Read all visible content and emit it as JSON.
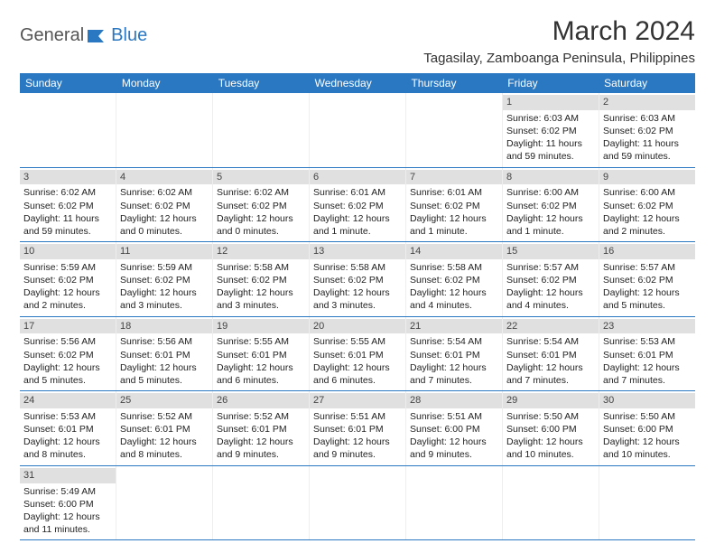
{
  "logo": {
    "part1": "General",
    "part2": "Blue"
  },
  "title": "March 2024",
  "location": "Tagasilay, Zamboanga Peninsula, Philippines",
  "weekdays": [
    "Sunday",
    "Monday",
    "Tuesday",
    "Wednesday",
    "Thursday",
    "Friday",
    "Saturday"
  ],
  "colors": {
    "header_bg": "#2b78c2",
    "header_text": "#ffffff",
    "daynum_bg": "#e0e0e0",
    "border": "#2b78c2",
    "text": "#222222"
  },
  "weeks": [
    [
      {
        "n": "",
        "sr": "",
        "ss": "",
        "dl": ""
      },
      {
        "n": "",
        "sr": "",
        "ss": "",
        "dl": ""
      },
      {
        "n": "",
        "sr": "",
        "ss": "",
        "dl": ""
      },
      {
        "n": "",
        "sr": "",
        "ss": "",
        "dl": ""
      },
      {
        "n": "",
        "sr": "",
        "ss": "",
        "dl": ""
      },
      {
        "n": "1",
        "sr": "Sunrise: 6:03 AM",
        "ss": "Sunset: 6:02 PM",
        "dl": "Daylight: 11 hours and 59 minutes."
      },
      {
        "n": "2",
        "sr": "Sunrise: 6:03 AM",
        "ss": "Sunset: 6:02 PM",
        "dl": "Daylight: 11 hours and 59 minutes."
      }
    ],
    [
      {
        "n": "3",
        "sr": "Sunrise: 6:02 AM",
        "ss": "Sunset: 6:02 PM",
        "dl": "Daylight: 11 hours and 59 minutes."
      },
      {
        "n": "4",
        "sr": "Sunrise: 6:02 AM",
        "ss": "Sunset: 6:02 PM",
        "dl": "Daylight: 12 hours and 0 minutes."
      },
      {
        "n": "5",
        "sr": "Sunrise: 6:02 AM",
        "ss": "Sunset: 6:02 PM",
        "dl": "Daylight: 12 hours and 0 minutes."
      },
      {
        "n": "6",
        "sr": "Sunrise: 6:01 AM",
        "ss": "Sunset: 6:02 PM",
        "dl": "Daylight: 12 hours and 1 minute."
      },
      {
        "n": "7",
        "sr": "Sunrise: 6:01 AM",
        "ss": "Sunset: 6:02 PM",
        "dl": "Daylight: 12 hours and 1 minute."
      },
      {
        "n": "8",
        "sr": "Sunrise: 6:00 AM",
        "ss": "Sunset: 6:02 PM",
        "dl": "Daylight: 12 hours and 1 minute."
      },
      {
        "n": "9",
        "sr": "Sunrise: 6:00 AM",
        "ss": "Sunset: 6:02 PM",
        "dl": "Daylight: 12 hours and 2 minutes."
      }
    ],
    [
      {
        "n": "10",
        "sr": "Sunrise: 5:59 AM",
        "ss": "Sunset: 6:02 PM",
        "dl": "Daylight: 12 hours and 2 minutes."
      },
      {
        "n": "11",
        "sr": "Sunrise: 5:59 AM",
        "ss": "Sunset: 6:02 PM",
        "dl": "Daylight: 12 hours and 3 minutes."
      },
      {
        "n": "12",
        "sr": "Sunrise: 5:58 AM",
        "ss": "Sunset: 6:02 PM",
        "dl": "Daylight: 12 hours and 3 minutes."
      },
      {
        "n": "13",
        "sr": "Sunrise: 5:58 AM",
        "ss": "Sunset: 6:02 PM",
        "dl": "Daylight: 12 hours and 3 minutes."
      },
      {
        "n": "14",
        "sr": "Sunrise: 5:58 AM",
        "ss": "Sunset: 6:02 PM",
        "dl": "Daylight: 12 hours and 4 minutes."
      },
      {
        "n": "15",
        "sr": "Sunrise: 5:57 AM",
        "ss": "Sunset: 6:02 PM",
        "dl": "Daylight: 12 hours and 4 minutes."
      },
      {
        "n": "16",
        "sr": "Sunrise: 5:57 AM",
        "ss": "Sunset: 6:02 PM",
        "dl": "Daylight: 12 hours and 5 minutes."
      }
    ],
    [
      {
        "n": "17",
        "sr": "Sunrise: 5:56 AM",
        "ss": "Sunset: 6:02 PM",
        "dl": "Daylight: 12 hours and 5 minutes."
      },
      {
        "n": "18",
        "sr": "Sunrise: 5:56 AM",
        "ss": "Sunset: 6:01 PM",
        "dl": "Daylight: 12 hours and 5 minutes."
      },
      {
        "n": "19",
        "sr": "Sunrise: 5:55 AM",
        "ss": "Sunset: 6:01 PM",
        "dl": "Daylight: 12 hours and 6 minutes."
      },
      {
        "n": "20",
        "sr": "Sunrise: 5:55 AM",
        "ss": "Sunset: 6:01 PM",
        "dl": "Daylight: 12 hours and 6 minutes."
      },
      {
        "n": "21",
        "sr": "Sunrise: 5:54 AM",
        "ss": "Sunset: 6:01 PM",
        "dl": "Daylight: 12 hours and 7 minutes."
      },
      {
        "n": "22",
        "sr": "Sunrise: 5:54 AM",
        "ss": "Sunset: 6:01 PM",
        "dl": "Daylight: 12 hours and 7 minutes."
      },
      {
        "n": "23",
        "sr": "Sunrise: 5:53 AM",
        "ss": "Sunset: 6:01 PM",
        "dl": "Daylight: 12 hours and 7 minutes."
      }
    ],
    [
      {
        "n": "24",
        "sr": "Sunrise: 5:53 AM",
        "ss": "Sunset: 6:01 PM",
        "dl": "Daylight: 12 hours and 8 minutes."
      },
      {
        "n": "25",
        "sr": "Sunrise: 5:52 AM",
        "ss": "Sunset: 6:01 PM",
        "dl": "Daylight: 12 hours and 8 minutes."
      },
      {
        "n": "26",
        "sr": "Sunrise: 5:52 AM",
        "ss": "Sunset: 6:01 PM",
        "dl": "Daylight: 12 hours and 9 minutes."
      },
      {
        "n": "27",
        "sr": "Sunrise: 5:51 AM",
        "ss": "Sunset: 6:01 PM",
        "dl": "Daylight: 12 hours and 9 minutes."
      },
      {
        "n": "28",
        "sr": "Sunrise: 5:51 AM",
        "ss": "Sunset: 6:00 PM",
        "dl": "Daylight: 12 hours and 9 minutes."
      },
      {
        "n": "29",
        "sr": "Sunrise: 5:50 AM",
        "ss": "Sunset: 6:00 PM",
        "dl": "Daylight: 12 hours and 10 minutes."
      },
      {
        "n": "30",
        "sr": "Sunrise: 5:50 AM",
        "ss": "Sunset: 6:00 PM",
        "dl": "Daylight: 12 hours and 10 minutes."
      }
    ],
    [
      {
        "n": "31",
        "sr": "Sunrise: 5:49 AM",
        "ss": "Sunset: 6:00 PM",
        "dl": "Daylight: 12 hours and 11 minutes."
      },
      {
        "n": "",
        "sr": "",
        "ss": "",
        "dl": ""
      },
      {
        "n": "",
        "sr": "",
        "ss": "",
        "dl": ""
      },
      {
        "n": "",
        "sr": "",
        "ss": "",
        "dl": ""
      },
      {
        "n": "",
        "sr": "",
        "ss": "",
        "dl": ""
      },
      {
        "n": "",
        "sr": "",
        "ss": "",
        "dl": ""
      },
      {
        "n": "",
        "sr": "",
        "ss": "",
        "dl": ""
      }
    ]
  ]
}
